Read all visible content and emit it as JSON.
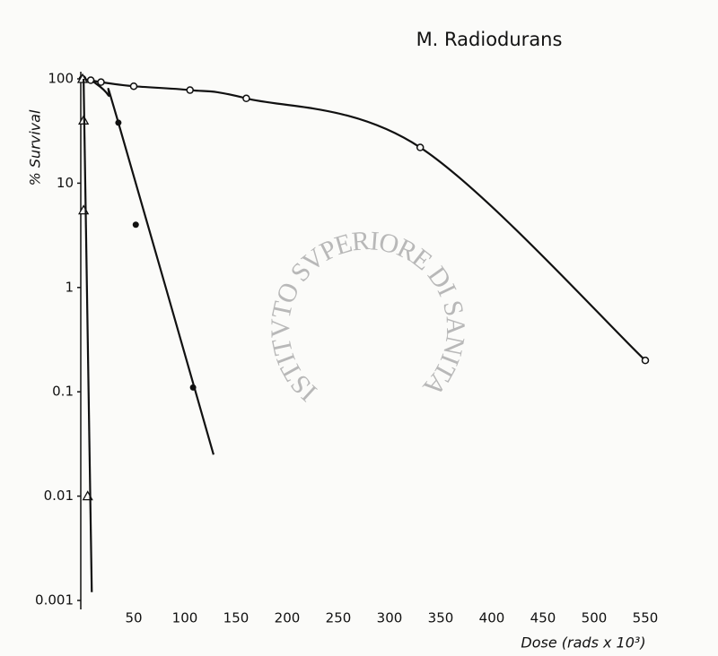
{
  "chart_data": {
    "type": "line",
    "title": "M. Radiodurans",
    "x_label": "Dose (rads x 10³)",
    "y_label": "% Survival",
    "watermark": "ISTITVTO SVPERIORE DI SANITA",
    "log_y": true,
    "xlim": [
      0,
      600
    ],
    "ylim": [
      0.001,
      100
    ],
    "xticks": [
      50,
      100,
      150,
      200,
      250,
      300,
      350,
      400,
      450,
      500,
      550
    ],
    "yticks": [
      100,
      10,
      1,
      0.1,
      0.01,
      0.001
    ],
    "series": [
      {
        "marker": "open-circle",
        "line": "smooth",
        "color": "#111111",
        "x": [
          0,
          8,
          18,
          50,
          105,
          160,
          330,
          550
        ],
        "values": [
          100,
          97,
          93,
          85,
          78,
          65,
          22,
          0.2
        ]
      },
      {
        "marker": "filled-circle",
        "line": "none",
        "color": "#111111",
        "x": [
          35,
          52,
          108
        ],
        "values": [
          38,
          4,
          0.11
        ]
      },
      {
        "marker": "none",
        "line": "smooth",
        "color": "#111111",
        "x": [
          10,
          25,
          35,
          128
        ],
        "values": [
          95,
          70,
          38,
          0.025
        ]
      },
      {
        "marker": "open-triangle",
        "line": "none",
        "color": "#111111",
        "x": [
          0,
          1,
          1,
          5
        ],
        "values": [
          100,
          40,
          5.5,
          0.01
        ]
      },
      {
        "marker": "none",
        "line": "straight",
        "color": "#111111",
        "x": [
          1,
          9
        ],
        "values": [
          100,
          0.0012
        ]
      }
    ]
  }
}
